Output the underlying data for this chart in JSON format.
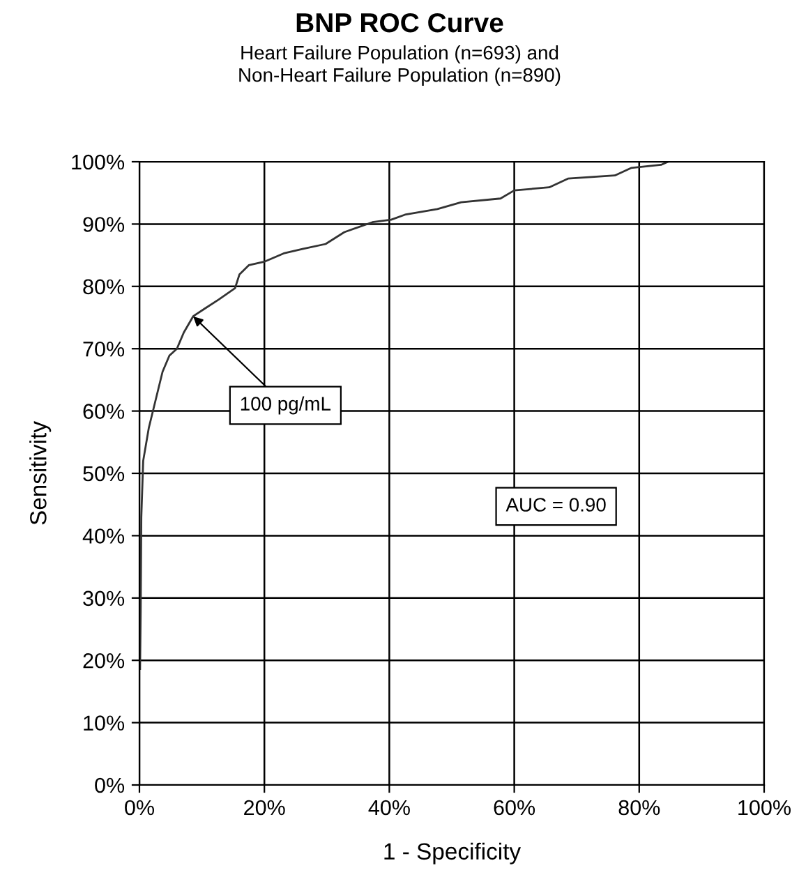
{
  "chart_data": {
    "type": "line",
    "title": "BNP ROC Curve",
    "subtitle": "Heart Failure Population (n=693) and\nNon-Heart Failure Population (n=890)",
    "xlabel": "1 - Specificity",
    "ylabel": "Sensitivity",
    "series": [
      {
        "color": "#333333",
        "x": [
          0.1,
          0.2,
          0.3,
          0.6,
          1.5,
          2.6,
          3.7,
          4.8,
          6.0,
          7.1,
          8.6,
          10.4,
          12.7,
          15.3,
          16.0,
          17.5,
          20.1,
          23.1,
          26.1,
          29.8,
          32.8,
          37.3,
          40.3,
          42.5,
          47.7,
          51.5,
          57.8,
          60.0,
          65.6,
          68.6,
          76.1,
          78.7,
          83.5,
          84.6
        ],
        "values": [
          18.6,
          28,
          43,
          52,
          57.3,
          61.8,
          66.3,
          68.9,
          70,
          72.6,
          75.2,
          76.4,
          77.9,
          79.7,
          81.9,
          83.4,
          84.0,
          85.3,
          86.0,
          86.8,
          88.7,
          90.3,
          90.7,
          91.5,
          92.4,
          93.5,
          94.1,
          95.4,
          95.9,
          97.3,
          97.8,
          99.0,
          99.5,
          100
        ]
      }
    ],
    "annotations": [
      {
        "text": "100 pg/mL",
        "x": 8.6,
        "y": 75.2
      },
      "AUC = 0.90"
    ],
    "xlim": [
      0,
      100
    ],
    "ylim": [
      0,
      100
    ],
    "xticks": [
      {
        "value": 0,
        "label": "0%"
      },
      {
        "value": 20,
        "label": "20%"
      },
      {
        "value": 40,
        "label": "40%"
      },
      {
        "value": 60,
        "label": "60%"
      },
      {
        "value": 80,
        "label": "80%"
      },
      {
        "value": 100,
        "label": "100%"
      }
    ],
    "yticks": [
      {
        "value": 0,
        "label": "0%"
      },
      {
        "value": 10,
        "label": "10%"
      },
      {
        "value": 20,
        "label": "20%"
      },
      {
        "value": 30,
        "label": "30%"
      },
      {
        "value": 40,
        "label": "40%"
      },
      {
        "value": 50,
        "label": "50%"
      },
      {
        "value": 60,
        "label": "60%"
      },
      {
        "value": 70,
        "label": "70%"
      },
      {
        "value": 80,
        "label": "80%"
      },
      {
        "value": 90,
        "label": "90%"
      },
      {
        "value": 100,
        "label": "100%"
      }
    ],
    "grid": true,
    "marker": "none",
    "line_style": "solid"
  }
}
